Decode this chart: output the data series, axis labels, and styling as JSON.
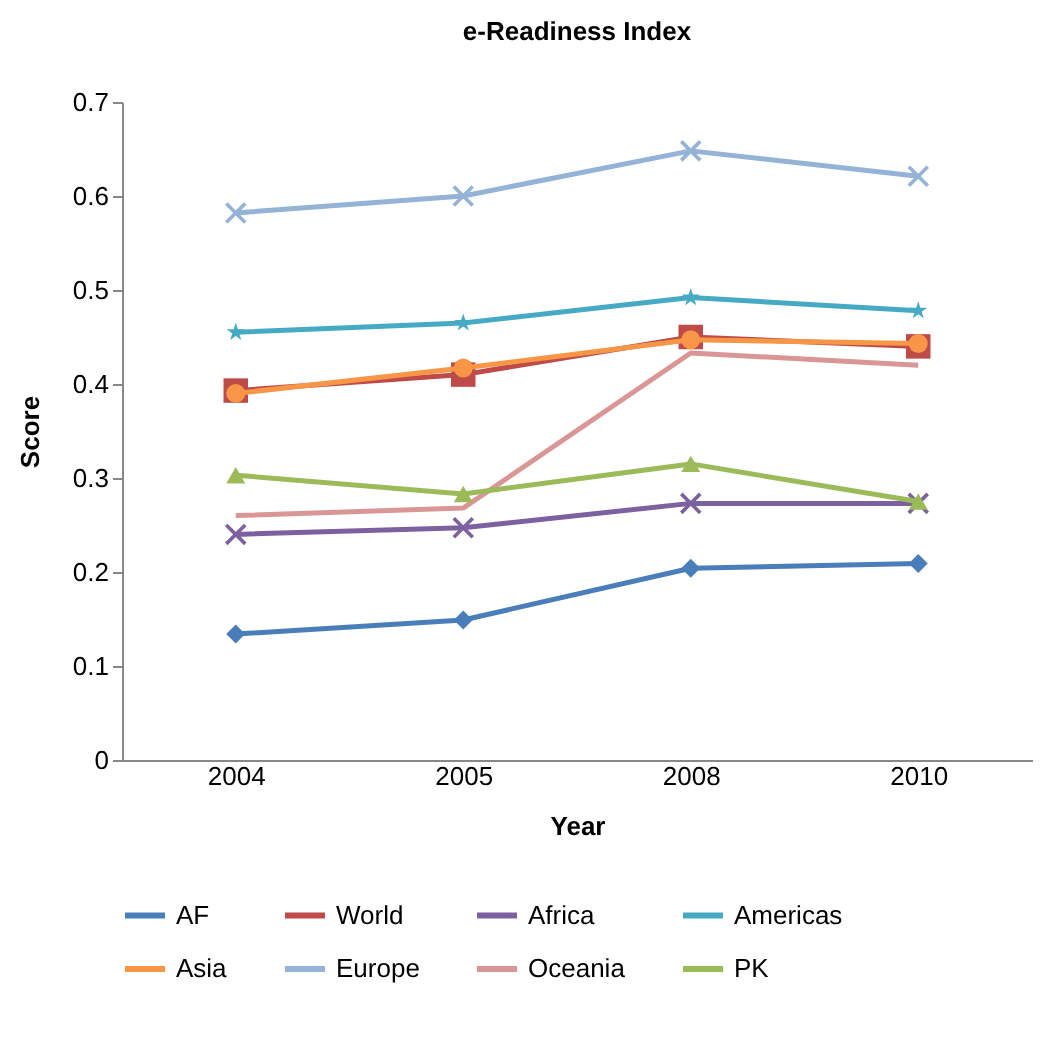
{
  "chart_data": {
    "type": "line",
    "title": "e-Readiness Index",
    "xlabel": "Year",
    "ylabel": "Score",
    "categories": [
      "2004",
      "2005",
      "2008",
      "2010"
    ],
    "ylim": [
      0,
      0.7
    ],
    "yticks": [
      0,
      0.1,
      0.2,
      0.3,
      0.4,
      0.5,
      0.6,
      0.7
    ],
    "grid": false,
    "legend": "bottom",
    "line_style": "solid",
    "series": [
      {
        "name": "AF",
        "color": "#4a7ebb",
        "marker": "diamond",
        "values": [
          0.134,
          0.149,
          0.204,
          0.209
        ]
      },
      {
        "name": "World",
        "color": "#be4b48",
        "marker": "square",
        "values": [
          0.393,
          0.41,
          0.45,
          0.44
        ]
      },
      {
        "name": "Africa",
        "color": "#7d60a0",
        "marker": "cross",
        "values": [
          0.24,
          0.247,
          0.273,
          0.273
        ]
      },
      {
        "name": "Americas",
        "color": "#46aac5",
        "marker": "star",
        "values": [
          0.455,
          0.465,
          0.492,
          0.478
        ]
      },
      {
        "name": "Asia",
        "color": "#f79646",
        "marker": "circle",
        "values": [
          0.39,
          0.417,
          0.447,
          0.443
        ]
      },
      {
        "name": "Europe",
        "color": "#95b3d7",
        "marker": "cross",
        "values": [
          0.582,
          0.6,
          0.648,
          0.621
        ]
      },
      {
        "name": "Oceania",
        "color": "#d99694",
        "marker": "none",
        "values": [
          0.26,
          0.268,
          0.433,
          0.42
        ]
      },
      {
        "name": "PK",
        "color": "#9bbb59",
        "marker": "triangle",
        "values": [
          0.303,
          0.283,
          0.315,
          0.275
        ]
      }
    ]
  }
}
